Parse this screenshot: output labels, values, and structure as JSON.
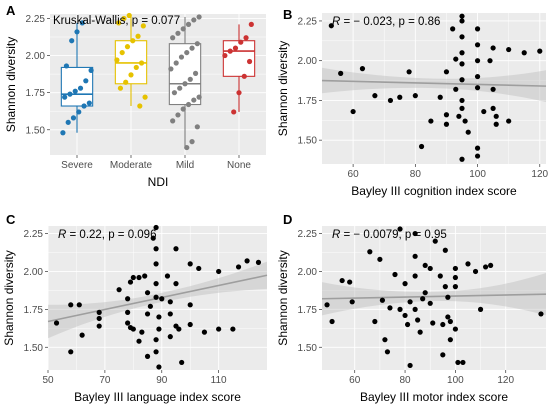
{
  "chart_data": [
    {
      "type": "box",
      "panel_label": "A",
      "annotation": "Kruskal-Wallis, p = 0.077",
      "xlabel": "NDI",
      "ylabel": "Shannon diversity",
      "ylim": [
        1.33,
        2.28
      ],
      "yticks": [
        "1.50",
        "1.75",
        "2.00",
        "2.25"
      ],
      "ytick_values": [
        1.5,
        1.75,
        2.0,
        2.25
      ],
      "grid": true,
      "colors": [
        "#1f77b4",
        "#e6c200",
        "#808080",
        "#cc3333"
      ],
      "categories": [
        "Severe",
        "Moderate",
        "Mild",
        "None"
      ],
      "boxes": [
        {
          "q1": 1.66,
          "median": 1.74,
          "q3": 1.92,
          "wlow": 1.48,
          "whigh": 2.22
        },
        {
          "q1": 1.81,
          "median": 1.95,
          "q3": 2.1,
          "wlow": 1.66,
          "whigh": 2.27
        },
        {
          "q1": 1.67,
          "median": 1.81,
          "q3": 2.08,
          "wlow": 1.38,
          "whigh": 2.26
        },
        {
          "q1": 1.86,
          "median": 2.03,
          "q3": 2.1,
          "wlow": 1.62,
          "whigh": 2.21
        }
      ],
      "points": [
        [
          1.48,
          1.55,
          1.58,
          1.62,
          1.66,
          1.68,
          1.72,
          1.74,
          1.76,
          1.78,
          1.83,
          1.9,
          1.93,
          2.1,
          2.16,
          2.22
        ],
        [
          1.66,
          1.72,
          1.78,
          1.82,
          1.87,
          1.92,
          1.95,
          1.97,
          2.02,
          2.06,
          2.1,
          2.13,
          2.2,
          2.22,
          2.25,
          2.27
        ],
        [
          1.38,
          1.42,
          1.52,
          1.56,
          1.6,
          1.64,
          1.67,
          1.7,
          1.72,
          1.75,
          1.78,
          1.81,
          1.84,
          1.88,
          1.91,
          1.95,
          1.99,
          2.02,
          2.05,
          2.08,
          2.12,
          2.15,
          2.18,
          2.21,
          2.24,
          2.26
        ],
        [
          1.62,
          1.75,
          1.86,
          1.96,
          2.0,
          2.03,
          2.05,
          2.09,
          2.12,
          2.21
        ]
      ]
    },
    {
      "type": "scatter",
      "panel_label": "B",
      "annotation_r": "R",
      "annotation_rest": " = − 0.023, p = 0.86",
      "xlabel": "Bayley III cognition index score",
      "ylabel": "Shannon diversity",
      "xlim": [
        50,
        122
      ],
      "ylim": [
        1.35,
        2.3
      ],
      "xticks": [
        "60",
        "80",
        "100",
        "120"
      ],
      "xtick_values": [
        60,
        80,
        100,
        120
      ],
      "yticks": [
        "1.50",
        "1.75",
        "2.00",
        "2.25"
      ],
      "ytick_values": [
        1.5,
        1.75,
        2.0,
        2.25
      ],
      "grid": true,
      "fit": {
        "y_at_xmin": 1.875,
        "y_at_xmax": 1.84,
        "band_half_low": 0.08,
        "band_half_mid": 0.03,
        "band_half_high": 0.1
      },
      "points": [
        [
          53,
          2.22
        ],
        [
          56,
          1.92
        ],
        [
          60,
          1.68
        ],
        [
          63,
          1.95
        ],
        [
          67,
          1.78
        ],
        [
          72,
          1.75
        ],
        [
          75,
          1.77
        ],
        [
          78,
          1.93
        ],
        [
          80,
          1.78
        ],
        [
          82,
          1.46
        ],
        [
          85,
          1.62
        ],
        [
          88,
          1.77
        ],
        [
          90,
          1.93
        ],
        [
          90,
          1.66
        ],
        [
          90,
          1.6
        ],
        [
          92,
          2.2
        ],
        [
          93,
          2.01
        ],
        [
          93,
          1.82
        ],
        [
          94,
          1.65
        ],
        [
          95,
          2.28
        ],
        [
          95,
          2.25
        ],
        [
          95,
          2.15
        ],
        [
          95,
          2.05
        ],
        [
          95,
          1.98
        ],
        [
          95,
          1.88
        ],
        [
          95,
          1.75
        ],
        [
          95,
          1.7
        ],
        [
          96,
          1.62
        ],
        [
          97,
          1.55
        ],
        [
          95,
          1.38
        ],
        [
          100,
          2.2
        ],
        [
          100,
          2.1
        ],
        [
          100,
          2.0
        ],
        [
          100,
          1.9
        ],
        [
          100,
          1.83
        ],
        [
          100,
          1.45
        ],
        [
          100,
          1.4
        ],
        [
          102,
          1.68
        ],
        [
          104,
          2.0
        ],
        [
          105,
          2.08
        ],
        [
          105,
          1.82
        ],
        [
          105,
          1.7
        ],
        [
          106,
          1.65
        ],
        [
          106,
          1.6
        ],
        [
          110,
          2.07
        ],
        [
          110,
          1.62
        ],
        [
          115,
          2.05
        ],
        [
          120,
          2.06
        ]
      ]
    },
    {
      "type": "scatter",
      "panel_label": "C",
      "annotation_r": "R",
      "annotation_rest": " = 0.22, p = 0.096",
      "xlabel": "Bayley III language index score",
      "ylabel": "Shannon diversity",
      "xlim": [
        50,
        127
      ],
      "ylim": [
        1.35,
        2.3
      ],
      "xticks": [
        "50",
        "70",
        "90",
        "110"
      ],
      "xtick_values": [
        50,
        70,
        90,
        110
      ],
      "yticks": [
        "1.50",
        "1.75",
        "2.00",
        "2.25"
      ],
      "ytick_values": [
        1.5,
        1.75,
        2.0,
        2.25
      ],
      "grid": true,
      "fit": {
        "y_at_xmin": 1.67,
        "y_at_xmax": 1.975,
        "band_half_low": 0.11,
        "band_half_mid": 0.03,
        "band_half_high": 0.09
      },
      "points": [
        [
          53,
          1.66
        ],
        [
          58,
          1.78
        ],
        [
          58,
          1.47
        ],
        [
          61,
          1.78
        ],
        [
          62,
          1.58
        ],
        [
          68,
          1.73
        ],
        [
          68,
          1.69
        ],
        [
          68,
          1.64
        ],
        [
          75,
          1.88
        ],
        [
          78,
          1.82
        ],
        [
          78,
          1.73
        ],
        [
          78,
          1.66
        ],
        [
          79,
          1.93
        ],
        [
          79,
          1.63
        ],
        [
          80,
          1.96
        ],
        [
          80,
          1.62
        ],
        [
          82,
          1.96
        ],
        [
          82,
          1.54
        ],
        [
          83,
          1.6
        ],
        [
          84,
          1.97
        ],
        [
          85,
          1.86
        ],
        [
          85,
          1.72
        ],
        [
          85,
          1.44
        ],
        [
          86,
          1.77
        ],
        [
          87,
          2.22
        ],
        [
          88,
          2.29
        ],
        [
          88,
          2.15
        ],
        [
          88,
          2.05
        ],
        [
          88,
          1.92
        ],
        [
          88,
          1.83
        ],
        [
          89,
          1.7
        ],
        [
          89,
          1.62
        ],
        [
          88,
          1.55
        ],
        [
          88,
          1.47
        ],
        [
          89,
          1.37
        ],
        [
          90,
          1.82
        ],
        [
          92,
          1.97
        ],
        [
          93,
          1.8
        ],
        [
          93,
          1.72
        ],
        [
          93,
          1.57
        ],
        [
          95,
          2.15
        ],
        [
          95,
          1.92
        ],
        [
          95,
          1.64
        ],
        [
          96,
          1.62
        ],
        [
          97,
          1.4
        ],
        [
          100,
          2.05
        ],
        [
          100,
          1.78
        ],
        [
          100,
          1.65
        ],
        [
          103,
          2.02
        ],
        [
          105,
          1.6
        ],
        [
          110,
          2.0
        ],
        [
          110,
          1.62
        ],
        [
          115,
          1.62
        ],
        [
          117,
          2.03
        ],
        [
          120,
          2.07
        ],
        [
          124,
          2.06
        ]
      ]
    },
    {
      "type": "scatter",
      "panel_label": "D",
      "annotation_r": "R",
      "annotation_rest": " = − 0.0079, p = 0.95",
      "xlabel": "Bayley III motor index score",
      "ylabel": "Shannon diversity",
      "xlim": [
        47,
        136
      ],
      "ylim": [
        1.35,
        2.3
      ],
      "xticks": [
        "60",
        "80",
        "100",
        "120"
      ],
      "xtick_values": [
        60,
        80,
        100,
        120
      ],
      "yticks": [
        "1.50",
        "1.75",
        "2.00",
        "2.25"
      ],
      "ytick_values": [
        1.5,
        1.75,
        2.0,
        2.25
      ],
      "grid": true,
      "fit": {
        "y_at_xmin": 1.82,
        "y_at_xmax": 1.85,
        "band_half_low": 0.11,
        "band_half_mid": 0.03,
        "band_half_high": 0.14
      },
      "points": [
        [
          49,
          1.78
        ],
        [
          51,
          1.67
        ],
        [
          55,
          1.94
        ],
        [
          58,
          1.93
        ],
        [
          59,
          1.8
        ],
        [
          66,
          2.13
        ],
        [
          68,
          1.67
        ],
        [
          70,
          2.08
        ],
        [
          71,
          1.81
        ],
        [
          72,
          1.55
        ],
        [
          73,
          1.47
        ],
        [
          74,
          1.76
        ],
        [
          76,
          1.98
        ],
        [
          78,
          1.75
        ],
        [
          78,
          2.28
        ],
        [
          80,
          1.92
        ],
        [
          80,
          1.71
        ],
        [
          81,
          1.65
        ],
        [
          82,
          1.38
        ],
        [
          82,
          1.8
        ],
        [
          84,
          2.25
        ],
        [
          84,
          2.1
        ],
        [
          84,
          1.97
        ],
        [
          84,
          1.75
        ],
        [
          85,
          1.68
        ],
        [
          86,
          1.6
        ],
        [
          87,
          1.82
        ],
        [
          88,
          2.04
        ],
        [
          88,
          1.86
        ],
        [
          90,
          2.02
        ],
        [
          90,
          1.79
        ],
        [
          91,
          1.66
        ],
        [
          92,
          2.2
        ],
        [
          94,
          1.97
        ],
        [
          95,
          1.65
        ],
        [
          95,
          1.45
        ],
        [
          96,
          2.14
        ],
        [
          96,
          1.9
        ],
        [
          97,
          1.83
        ],
        [
          97,
          1.7
        ],
        [
          98,
          1.67
        ],
        [
          98,
          1.55
        ],
        [
          100,
          2.02
        ],
        [
          100,
          1.96
        ],
        [
          100,
          1.9
        ],
        [
          100,
          1.62
        ],
        [
          101,
          1.4
        ],
        [
          103,
          1.4
        ],
        [
          105,
          2.05
        ],
        [
          108,
          2.0
        ],
        [
          110,
          1.75
        ],
        [
          112,
          2.03
        ],
        [
          114,
          2.04
        ],
        [
          134,
          1.72
        ]
      ]
    }
  ]
}
